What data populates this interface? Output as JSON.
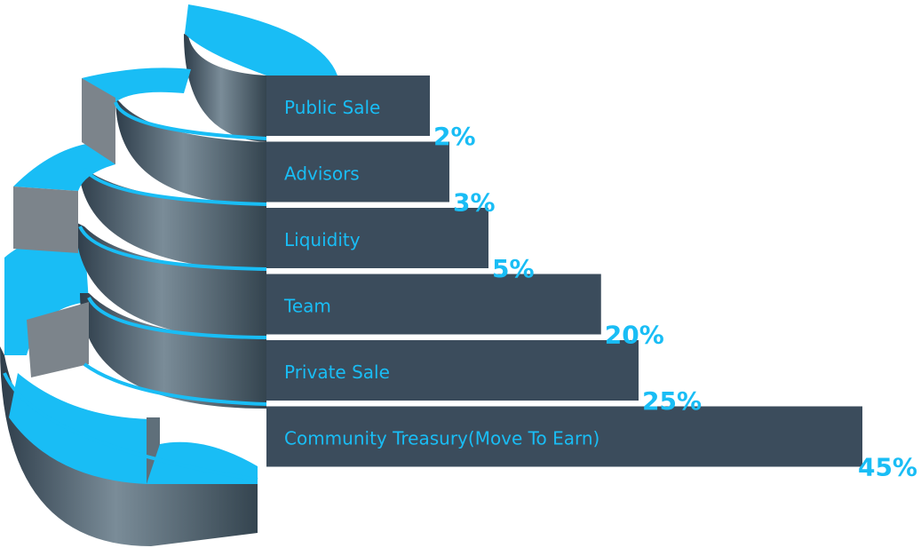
{
  "chart_data": {
    "type": "bar",
    "title": "",
    "categories": [
      "Public Sale",
      "Advisors",
      "Liquidity",
      "Team",
      "Private Sale",
      "Community Treasury(Move To Earn)"
    ],
    "values": [
      2,
      3,
      5,
      20,
      25,
      45
    ],
    "value_labels": [
      "2%",
      "3%",
      "5%",
      "20%",
      "25%",
      "45%"
    ],
    "unit": "%",
    "orientation": "horizontal",
    "legend": "none",
    "grid": false,
    "colors": {
      "accent": "#19bdf5",
      "bar": "#3b4c5c",
      "bar_light": "#6e8290",
      "bar_dark": "#2c3a47"
    }
  }
}
